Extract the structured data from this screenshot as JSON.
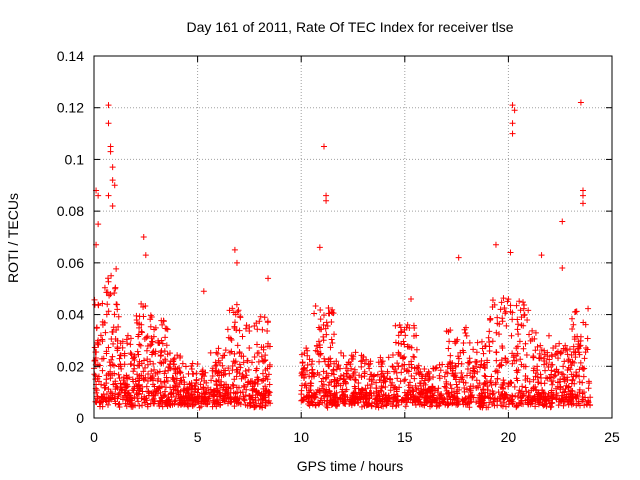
{
  "chart_data": {
    "type": "scatter",
    "title": "Day 161 of 2011, Rate Of TEC Index for receiver tlse",
    "xlabel": "GPS time / hours",
    "ylabel": "ROTI / TECUs",
    "xlim": [
      0,
      25
    ],
    "ylim": [
      0,
      0.14
    ],
    "xticks": [
      0,
      5,
      10,
      15,
      20,
      25
    ],
    "xtick_labels": [
      "0",
      "5",
      "10",
      "15",
      "20",
      "25"
    ],
    "yticks": [
      0,
      0.02,
      0.04,
      0.06,
      0.08,
      0.1,
      0.12,
      0.14
    ],
    "ytick_labels": [
      "0",
      "0.02",
      "0.04",
      "0.06",
      "0.08",
      "0.1",
      "0.12",
      "0.14"
    ],
    "grid": true,
    "marker": "+",
    "color": "#ff0000",
    "data_gap_hours": [
      8.5,
      10.0
    ],
    "notable_points": [
      {
        "x": 0.7,
        "y": 0.121
      },
      {
        "x": 0.7,
        "y": 0.114
      },
      {
        "x": 0.8,
        "y": 0.105
      },
      {
        "x": 0.8,
        "y": 0.103
      },
      {
        "x": 0.9,
        "y": 0.097
      },
      {
        "x": 0.9,
        "y": 0.092
      },
      {
        "x": 1.0,
        "y": 0.09
      },
      {
        "x": 0.7,
        "y": 0.086
      },
      {
        "x": 0.1,
        "y": 0.088
      },
      {
        "x": 0.2,
        "y": 0.086
      },
      {
        "x": 0.9,
        "y": 0.082
      },
      {
        "x": 0.2,
        "y": 0.075
      },
      {
        "x": 2.4,
        "y": 0.07
      },
      {
        "x": 0.1,
        "y": 0.067
      },
      {
        "x": 2.5,
        "y": 0.063
      },
      {
        "x": 6.8,
        "y": 0.065
      },
      {
        "x": 6.9,
        "y": 0.06
      },
      {
        "x": 5.3,
        "y": 0.049
      },
      {
        "x": 8.4,
        "y": 0.054
      },
      {
        "x": 11.1,
        "y": 0.105
      },
      {
        "x": 11.2,
        "y": 0.086
      },
      {
        "x": 11.2,
        "y": 0.084
      },
      {
        "x": 10.9,
        "y": 0.066
      },
      {
        "x": 15.3,
        "y": 0.046
      },
      {
        "x": 17.6,
        "y": 0.062
      },
      {
        "x": 19.4,
        "y": 0.067
      },
      {
        "x": 20.2,
        "y": 0.121
      },
      {
        "x": 20.3,
        "y": 0.119
      },
      {
        "x": 20.2,
        "y": 0.114
      },
      {
        "x": 20.2,
        "y": 0.11
      },
      {
        "x": 20.1,
        "y": 0.064
      },
      {
        "x": 21.6,
        "y": 0.063
      },
      {
        "x": 22.6,
        "y": 0.076
      },
      {
        "x": 23.5,
        "y": 0.122
      },
      {
        "x": 23.6,
        "y": 0.088
      },
      {
        "x": 23.6,
        "y": 0.086
      },
      {
        "x": 23.6,
        "y": 0.083
      },
      {
        "x": 22.6,
        "y": 0.058
      }
    ],
    "bulk_profile": [
      {
        "x_range": [
          0,
          8.5
        ],
        "typical_range": [
          0.005,
          0.035
        ]
      },
      {
        "x_range": [
          10,
          24
        ],
        "typical_range": [
          0.005,
          0.04
        ]
      }
    ]
  }
}
